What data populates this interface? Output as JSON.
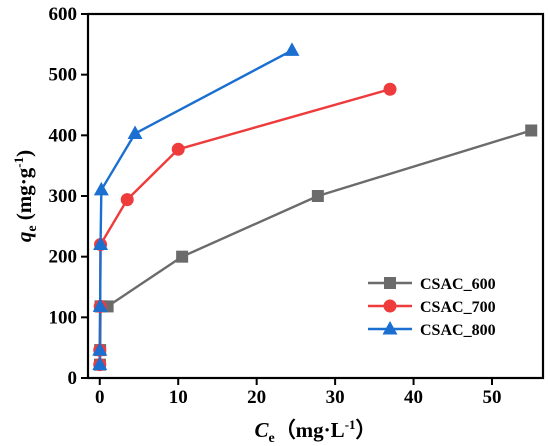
{
  "chart_data": {
    "type": "line",
    "xlabel": {
      "symbol": "C",
      "subscript": "e",
      "units": "（mg·L",
      "units_sup": "-1",
      "units_close": "）"
    },
    "ylabel": {
      "symbol": "q",
      "subscript": "e",
      "units": " (mg·g",
      "units_sup": "-1",
      "units_close": ")"
    },
    "xlim": [
      -1.5,
      56.5
    ],
    "ylim": [
      0,
      600
    ],
    "x_ticks": [
      0,
      10,
      20,
      30,
      40,
      50
    ],
    "y_ticks": [
      0,
      100,
      200,
      300,
      400,
      500,
      600
    ],
    "grid": false,
    "legend_position": "lower-right",
    "series": [
      {
        "name": "CSAC_600",
        "color": "#6b6b6b",
        "marker": "square",
        "x": [
          0.02,
          0.05,
          0.1,
          0.15,
          1.0,
          10.5,
          27.8,
          55.0
        ],
        "y": [
          22,
          46,
          118,
          118,
          118,
          200,
          300,
          408
        ]
      },
      {
        "name": "CSAC_700",
        "color": "#ee3b3b",
        "marker": "circle",
        "x": [
          0.0,
          0.0,
          0.05,
          0.1,
          3.5,
          10.0,
          37.0
        ],
        "y": [
          22,
          46,
          118,
          220,
          294,
          377,
          476
        ]
      },
      {
        "name": "CSAC_800",
        "color": "#1a6fd1",
        "marker": "triangle",
        "x": [
          0.0,
          0.0,
          0.05,
          0.1,
          0.2,
          4.5,
          24.5
        ],
        "y": [
          22,
          46,
          118,
          220,
          310,
          403,
          540
        ]
      }
    ]
  }
}
